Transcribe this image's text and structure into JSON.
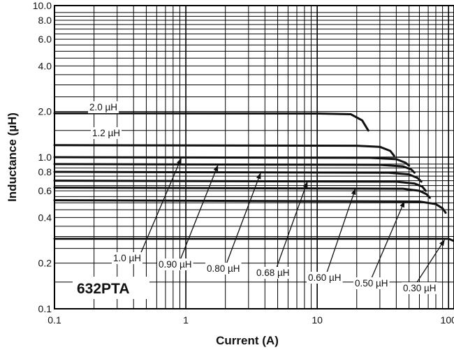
{
  "chart_data": {
    "type": "line",
    "title": "",
    "annotation": "632PTA",
    "xlabel": "Current (A)",
    "ylabel": "Inductance (µH)",
    "x_scale": "log",
    "y_scale": "log",
    "xlim": [
      0.1,
      110
    ],
    "ylim": [
      0.1,
      10.0
    ],
    "grid": true,
    "legend": "labels with arrows pointing to each curve",
    "x_ticks": [
      "0.1",
      "1",
      "10",
      "100"
    ],
    "y_ticks": [
      "0.1",
      "0.2",
      "0.4",
      "0.6",
      "0.8",
      "1.0",
      "2.0",
      "4.0",
      "6.0",
      "8.0",
      "10.0"
    ],
    "series": [
      {
        "name": "2.0 µH",
        "points": [
          [
            0.1,
            1.95
          ],
          [
            10,
            1.94
          ],
          [
            18,
            1.92
          ],
          [
            22,
            1.75
          ],
          [
            24.5,
            1.5
          ]
        ]
      },
      {
        "name": "1.2 µH",
        "points": [
          [
            0.1,
            1.2
          ],
          [
            20,
            1.19
          ],
          [
            30,
            1.17
          ],
          [
            36,
            1.1
          ],
          [
            38.5,
            1.02
          ]
        ]
      },
      {
        "name": "1.0 µH",
        "points": [
          [
            0.1,
            1.0
          ],
          [
            25,
            0.99
          ],
          [
            40,
            0.97
          ],
          [
            47,
            0.92
          ],
          [
            50,
            0.88
          ]
        ]
      },
      {
        "name": "0.90 µH",
        "points": [
          [
            0.1,
            0.9
          ],
          [
            30,
            0.89
          ],
          [
            45,
            0.87
          ],
          [
            52,
            0.83
          ],
          [
            55,
            0.79
          ]
        ]
      },
      {
        "name": "0.80 µH",
        "points": [
          [
            0.1,
            0.8
          ],
          [
            35,
            0.79
          ],
          [
            50,
            0.77
          ],
          [
            58,
            0.73
          ],
          [
            62,
            0.69
          ]
        ]
      },
      {
        "name": "0.68 µH",
        "points": [
          [
            0.1,
            0.7
          ],
          [
            40,
            0.69
          ],
          [
            55,
            0.67
          ],
          [
            63,
            0.64
          ],
          [
            67,
            0.6
          ]
        ]
      },
      {
        "name": "0.60 µH",
        "points": [
          [
            0.1,
            0.63
          ],
          [
            45,
            0.62
          ],
          [
            60,
            0.6
          ],
          [
            68,
            0.57
          ],
          [
            72,
            0.54
          ]
        ]
      },
      {
        "name": "0.50 µH",
        "points": [
          [
            0.1,
            0.52
          ],
          [
            60,
            0.51
          ],
          [
            80,
            0.49
          ],
          [
            90,
            0.46
          ],
          [
            95,
            0.43
          ]
        ]
      },
      {
        "name": "0.30 µH",
        "points": [
          [
            0.1,
            0.29
          ],
          [
            100,
            0.29
          ],
          [
            110,
            0.28
          ]
        ]
      }
    ]
  }
}
